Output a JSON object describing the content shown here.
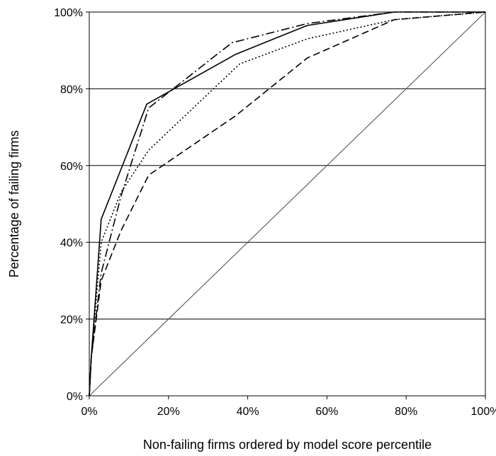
{
  "chart_data": {
    "type": "line",
    "title": "",
    "xlabel": "Non-failing firms ordered by model score percentile",
    "ylabel": "Percentage of failing firms",
    "xlim": [
      0,
      100
    ],
    "ylim": [
      0,
      100
    ],
    "x_ticks": [
      "0%",
      "20%",
      "40%",
      "60%",
      "80%",
      "100%"
    ],
    "y_ticks": [
      "0%",
      "20%",
      "40%",
      "60%",
      "80%",
      "100%"
    ],
    "grid": "horizontal",
    "legend": "none",
    "series": [
      {
        "style": "solid",
        "color": "#000000",
        "points": [
          [
            0,
            0
          ],
          [
            0.5,
            10
          ],
          [
            3,
            46
          ],
          [
            14.5,
            76
          ],
          [
            37,
            89
          ],
          [
            55,
            96.5
          ],
          [
            77,
            100
          ],
          [
            100,
            100
          ]
        ]
      },
      {
        "style": "dash-dot",
        "color": "#000000",
        "points": [
          [
            0,
            0
          ],
          [
            0.5,
            10
          ],
          [
            3,
            32
          ],
          [
            8,
            52
          ],
          [
            15,
            75
          ],
          [
            36,
            92
          ],
          [
            55,
            97
          ],
          [
            77,
            100
          ],
          [
            100,
            100
          ]
        ]
      },
      {
        "style": "dotted",
        "color": "#000000",
        "points": [
          [
            0,
            0
          ],
          [
            0.5,
            10
          ],
          [
            3,
            40
          ],
          [
            8,
            53
          ],
          [
            15,
            64
          ],
          [
            38,
            86.5
          ],
          [
            55,
            93
          ],
          [
            77,
            98
          ],
          [
            100,
            100
          ]
        ]
      },
      {
        "style": "dashed",
        "color": "#000000",
        "points": [
          [
            0,
            0
          ],
          [
            0.5,
            10
          ],
          [
            3,
            30
          ],
          [
            8,
            43
          ],
          [
            15,
            57.5
          ],
          [
            37,
            73
          ],
          [
            55,
            88
          ],
          [
            77,
            98
          ],
          [
            100,
            100
          ]
        ]
      },
      {
        "style": "solid-thin",
        "color": "#555555",
        "points": [
          [
            0,
            0
          ],
          [
            100,
            100
          ]
        ]
      }
    ]
  }
}
